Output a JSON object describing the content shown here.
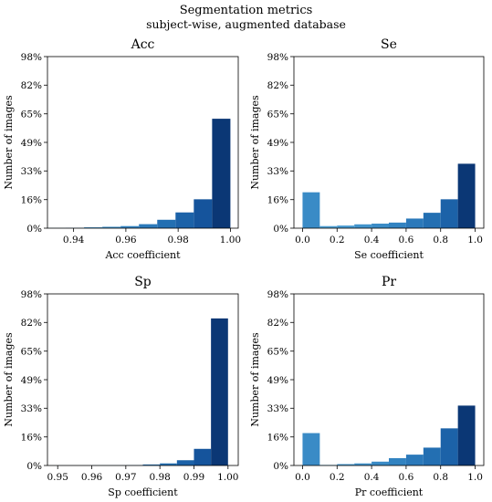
{
  "figure": {
    "title": "Segmentation metrics",
    "subtitle": "subject-wise, augmented database"
  },
  "chart_data": [
    {
      "type": "bar",
      "title": "Acc",
      "xlabel": "Acc coefficient",
      "ylabel": "Number of images",
      "xlim": [
        0.93,
        1.003
      ],
      "xticks": [
        0.94,
        0.96,
        0.98,
        1.0
      ],
      "xtick_labels": [
        "0.94",
        "0.96",
        "0.98",
        "1.00"
      ],
      "ylim": [
        0,
        98
      ],
      "yticks": [
        0,
        16.3,
        32.7,
        49,
        65.3,
        81.7,
        98
      ],
      "ytick_labels": [
        "0%",
        "16%",
        "33%",
        "49%",
        "65%",
        "82%",
        "98%"
      ],
      "bin_edges": [
        0.93,
        0.937,
        0.944,
        0.951,
        0.958,
        0.965,
        0.972,
        0.979,
        0.986,
        0.993,
        1.0
      ],
      "values": [
        0.1,
        0.2,
        0.5,
        0.8,
        1.2,
        2.3,
        4.8,
        9.0,
        16.5,
        62.5
      ],
      "colors": [
        "#4d9fd3",
        "#4799d0",
        "#4193cb",
        "#3a8bc6",
        "#3283c1",
        "#2b79ba",
        "#236fb2",
        "#1c62a8",
        "#15549c",
        "#0b3775"
      ]
    },
    {
      "type": "bar",
      "title": "Se",
      "xlabel": "Se coefficient",
      "ylabel": "Number of images",
      "xlim": [
        -0.05,
        1.05
      ],
      "xticks": [
        0.0,
        0.2,
        0.4,
        0.6,
        0.8,
        1.0
      ],
      "xtick_labels": [
        "0.0",
        "0.2",
        "0.4",
        "0.6",
        "0.8",
        "1.0"
      ],
      "ylim": [
        0,
        98
      ],
      "yticks": [
        0,
        16.3,
        32.7,
        49,
        65.3,
        81.7,
        98
      ],
      "ytick_labels": [
        "0%",
        "16%",
        "33%",
        "49%",
        "65%",
        "82%",
        "98%"
      ],
      "bin_edges": [
        0.0,
        0.1,
        0.2,
        0.3,
        0.4,
        0.5,
        0.6,
        0.7,
        0.8,
        0.9,
        1.0
      ],
      "values": [
        20.5,
        1.2,
        1.5,
        2.2,
        2.6,
        3.2,
        5.5,
        8.8,
        16.5,
        36.8
      ],
      "colors": [
        "#3a8bc6",
        "#4d9fd3",
        "#4799d0",
        "#4193cb",
        "#3a8bc6",
        "#3283c1",
        "#2b79ba",
        "#236fb2",
        "#1c62a8",
        "#0b3775"
      ]
    },
    {
      "type": "bar",
      "title": "Sp",
      "xlabel": "Sp coefficient",
      "ylabel": "Number of images",
      "xlim": [
        0.947,
        1.003
      ],
      "xticks": [
        0.95,
        0.96,
        0.97,
        0.98,
        0.99,
        1.0
      ],
      "xtick_labels": [
        "0.95",
        "0.96",
        "0.97",
        "0.98",
        "0.99",
        "1.00"
      ],
      "ylim": [
        0,
        98
      ],
      "yticks": [
        0,
        16.3,
        32.7,
        49,
        65.3,
        81.7,
        98
      ],
      "ytick_labels": [
        "0%",
        "16%",
        "33%",
        "49%",
        "65%",
        "82%",
        "98%"
      ],
      "bin_edges": [
        0.95,
        0.955,
        0.96,
        0.965,
        0.97,
        0.975,
        0.98,
        0.985,
        0.99,
        0.995,
        1.0
      ],
      "values": [
        0.05,
        0.05,
        0.1,
        0.1,
        0.2,
        0.6,
        1.2,
        3.0,
        9.5,
        84.0
      ],
      "colors": [
        "#4d9fd3",
        "#4799d0",
        "#4193cb",
        "#3a8bc6",
        "#3283c1",
        "#2b79ba",
        "#236fb2",
        "#1c62a8",
        "#15549c",
        "#0b3775"
      ]
    },
    {
      "type": "bar",
      "title": "Pr",
      "xlabel": "Pr coefficient",
      "ylabel": "Number of images",
      "xlim": [
        -0.05,
        1.05
      ],
      "xticks": [
        0.0,
        0.2,
        0.4,
        0.6,
        0.8,
        1.0
      ],
      "xtick_labels": [
        "0.0",
        "0.2",
        "0.4",
        "0.6",
        "0.8",
        "1.0"
      ],
      "ylim": [
        0,
        98
      ],
      "yticks": [
        0,
        16.3,
        32.7,
        49,
        65.3,
        81.7,
        98
      ],
      "ytick_labels": [
        "0%",
        "16%",
        "33%",
        "49%",
        "65%",
        "82%",
        "98%"
      ],
      "bin_edges": [
        0.0,
        0.1,
        0.2,
        0.3,
        0.4,
        0.5,
        0.6,
        0.7,
        0.8,
        0.9,
        1.0
      ],
      "values": [
        18.5,
        0.3,
        0.8,
        1.2,
        2.2,
        4.2,
        6.2,
        10.2,
        21.2,
        34.2
      ],
      "colors": [
        "#3a8bc6",
        "#4d9fd3",
        "#4799d0",
        "#4193cb",
        "#3a8bc6",
        "#3283c1",
        "#2b79ba",
        "#236fb2",
        "#1c62a8",
        "#0b3775"
      ]
    }
  ]
}
